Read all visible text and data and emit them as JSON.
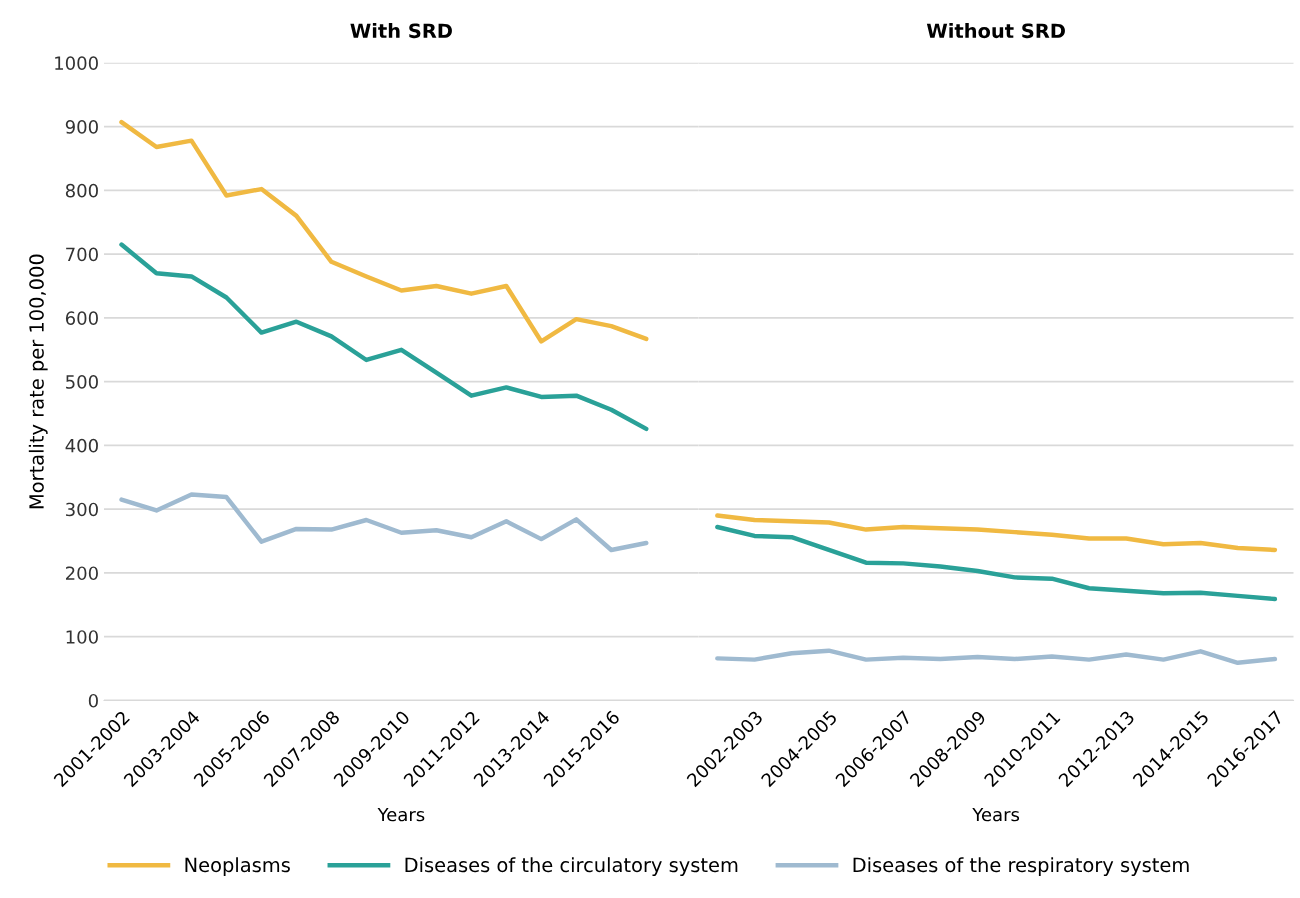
{
  "chart_data": [
    {
      "type": "line",
      "title": "With SRD",
      "xlabel": "Years",
      "ylabel": "Mortality rate per 100,000",
      "categories": [
        "2001-2002",
        null,
        "2003-2004",
        null,
        "2005-2006",
        null,
        "2007-2008",
        null,
        "2009-2010",
        null,
        "2011-2012",
        null,
        "2013-2014",
        null,
        "2015-2016",
        null
      ],
      "ylim": [
        0,
        1000
      ],
      "yticks": [
        0,
        100,
        200,
        300,
        400,
        500,
        600,
        700,
        800,
        900,
        1000
      ],
      "grid": "y",
      "legend": "bottom",
      "marker": "none",
      "line_style": "solid",
      "series": [
        {
          "name": "Neoplasms",
          "color": "#f0b942",
          "values": [
            907,
            868,
            878,
            792,
            802,
            760,
            688,
            665,
            643,
            650,
            638,
            650,
            563,
            598,
            587,
            567
          ]
        },
        {
          "name": "Diseases of the circulatory system",
          "color": "#2aa198",
          "values": [
            715,
            670,
            665,
            632,
            577,
            594,
            571,
            534,
            550,
            514,
            478,
            491,
            476,
            478,
            456,
            426
          ]
        },
        {
          "name": "Diseases of the respiratory system",
          "color": "#9fbad0",
          "values": [
            315,
            298,
            323,
            319,
            249,
            269,
            268,
            283,
            263,
            267,
            256,
            281,
            253,
            284,
            236,
            247
          ]
        }
      ]
    },
    {
      "type": "line",
      "title": "Without SRD",
      "xlabel": "Years",
      "categories": [
        null,
        "2002-2003",
        null,
        "2004-2005",
        null,
        "2006-2007",
        null,
        "2008-2009",
        null,
        "2010-2011",
        null,
        "2012-2013",
        null,
        "2014-2015",
        null,
        "2016-2017"
      ],
      "ylim": [
        0,
        1000
      ],
      "yticks": [
        0,
        100,
        200,
        300,
        400,
        500,
        600,
        700,
        800,
        900,
        1000
      ],
      "tick_labels": "x",
      "grid": "y",
      "marker": "none",
      "line_style": "solid",
      "series": [
        {
          "color": "#f0b942",
          "values": [
            290,
            283,
            281,
            279,
            268,
            272,
            270,
            268,
            264,
            260,
            254,
            254,
            245,
            247,
            239,
            236
          ]
        },
        {
          "color": "#2aa198",
          "values": [
            272,
            258,
            256,
            236,
            216,
            215,
            210,
            203,
            193,
            191,
            176,
            172,
            168,
            169,
            164,
            159
          ]
        },
        {
          "color": "#9fbad0",
          "values": [
            66,
            64,
            74,
            78,
            64,
            67,
            65,
            68,
            65,
            69,
            64,
            72,
            64,
            77,
            59,
            65
          ]
        }
      ]
    }
  ]
}
